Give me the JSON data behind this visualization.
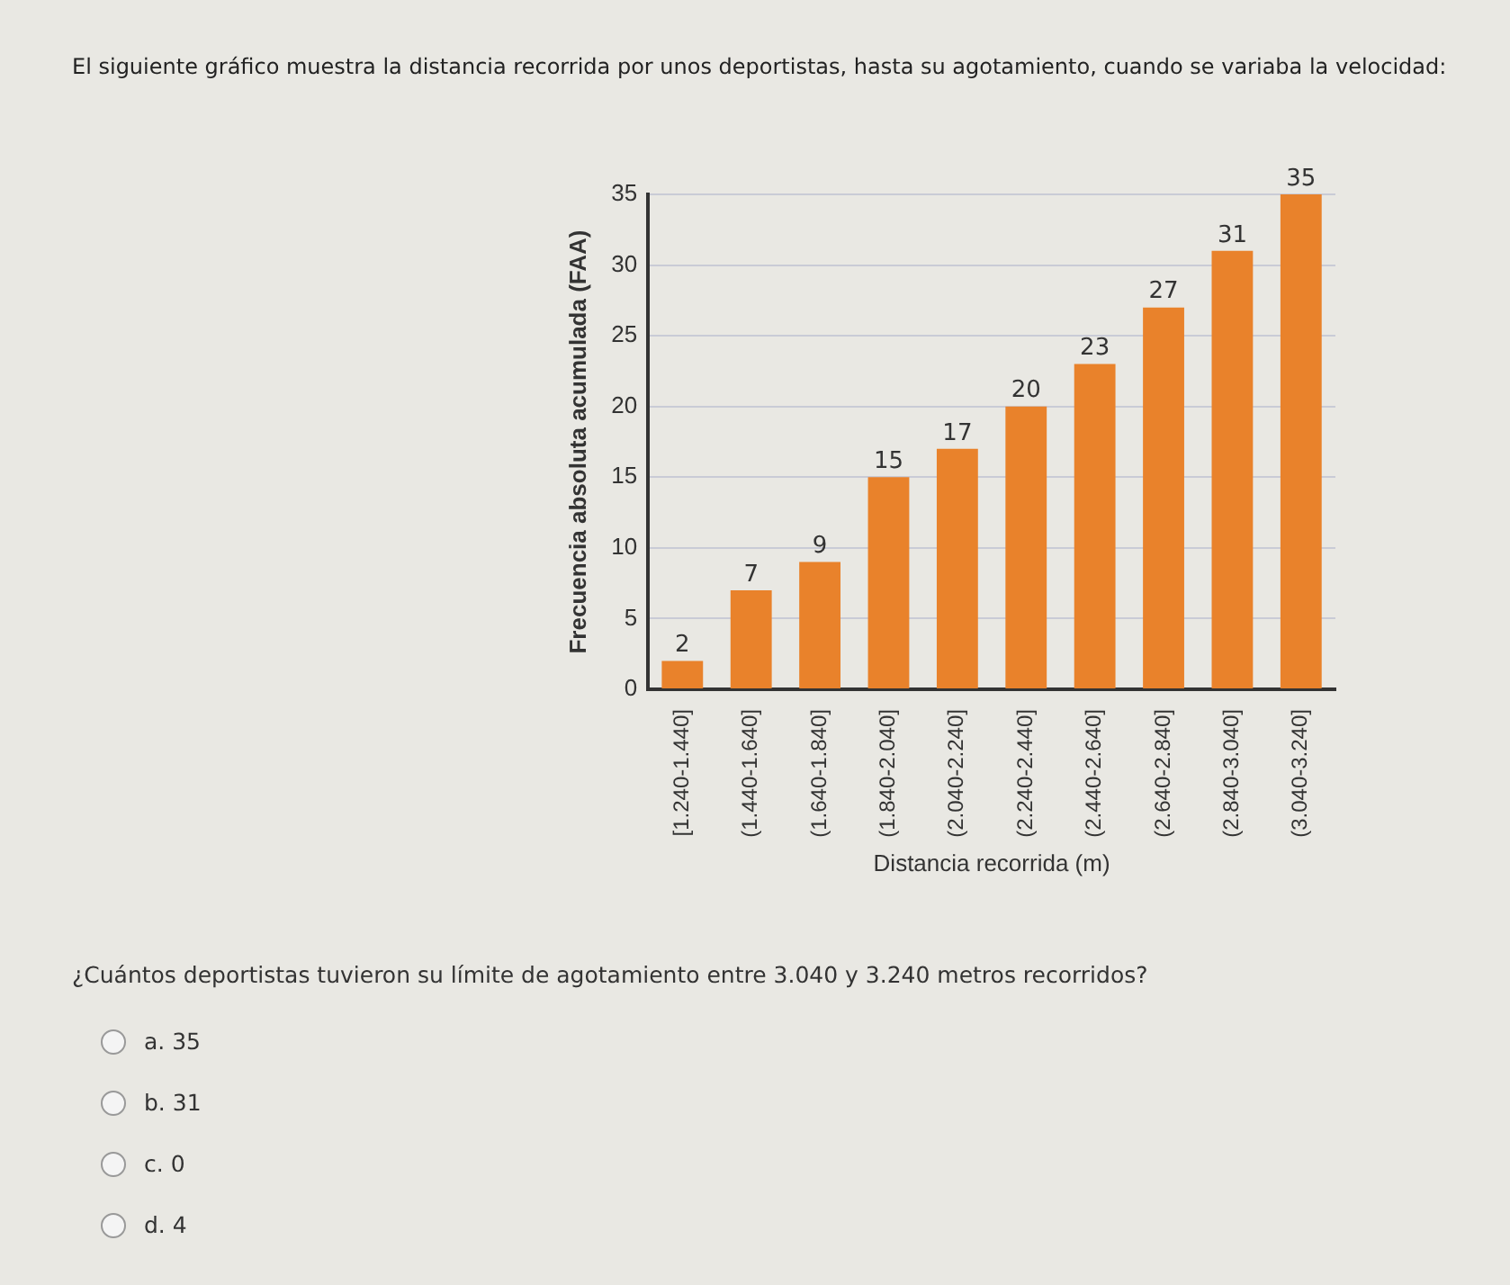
{
  "chart_data": {
    "type": "bar",
    "title": "El siguiente gráfico muestra la distancia recorrida por unos deportistas, hasta su agotamiento, cuando se variaba la velocidad:",
    "xlabel": "Distancia recorrida (m)",
    "ylabel": "Frecuencia absoluta acumulada (FAA)",
    "categories": [
      "[1.240-1.440]",
      "(1.440-1.640]",
      "(1.640-1.840]",
      "(1.840-2.040]",
      "(2.040-2.240]",
      "(2.240-2.440]",
      "(2.440-2.640]",
      "(2.640-2.840]",
      "(2.840-3.040]",
      "(3.040-3.240]"
    ],
    "values": [
      2,
      7,
      9,
      15,
      17,
      20,
      23,
      27,
      31,
      35
    ],
    "color": "#e9822b",
    "ylim": [
      0,
      35
    ],
    "yticks": [
      0,
      5,
      10,
      15,
      20,
      25,
      30,
      35
    ],
    "grid": "y",
    "data_labels": true,
    "legend": false,
    "annotations": [
      "¿Cuántos deportistas tuvieron su límite de agotamiento entre 3.040 y 3.240 metros recorridos?",
      "a.   35",
      "b.   31",
      "c.   0",
      "d.   4"
    ]
  }
}
